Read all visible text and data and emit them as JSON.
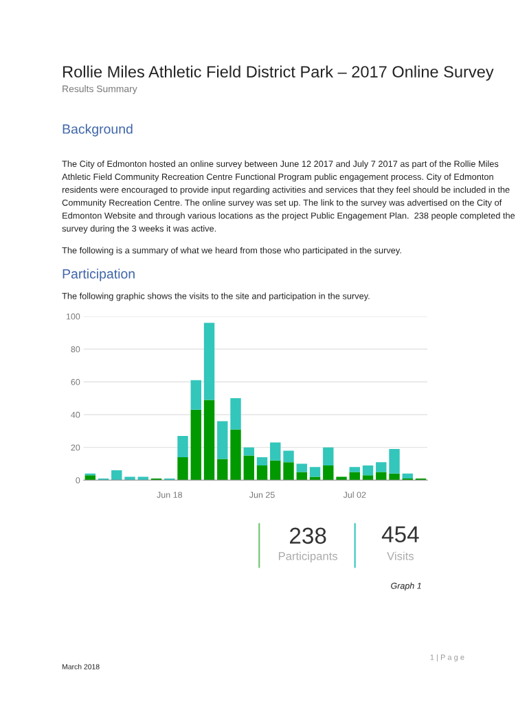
{
  "chart_data": {
    "type": "bar",
    "title": "Rollie Miles Athletic Field District Park – 2017 Online Survey",
    "subtitle": "Results Summary",
    "categories": [
      null,
      null,
      null,
      null,
      null,
      null,
      "Jun 18",
      null,
      null,
      null,
      null,
      null,
      null,
      "Jun 25",
      null,
      null,
      null,
      null,
      null,
      null,
      "Jul 02",
      null,
      null,
      null,
      null,
      null
    ],
    "stacked": true,
    "series": [
      {
        "color": "#009900",
        "values": [
          3,
          0,
          0,
          0,
          0,
          1,
          0,
          14,
          43,
          49,
          13,
          31,
          15,
          9,
          12,
          11,
          5,
          2,
          9,
          2,
          5,
          3,
          5,
          4,
          1,
          1
        ]
      },
      {
        "color": "#33c6bb",
        "values": [
          1,
          1,
          6,
          2,
          2,
          0,
          1,
          13,
          18,
          47,
          23,
          19,
          5,
          5,
          11,
          7,
          5,
          6,
          11,
          0,
          3,
          6,
          6,
          15,
          3,
          0
        ]
      }
    ],
    "ylim": [
      0,
      100
    ],
    "yticks": [
      0,
      20,
      40,
      60,
      80,
      100
    ],
    "grid": "y",
    "annotations": [
      "Background",
      "The City of Edmonton hosted an online survey between June 12 2017 and July 7 2017 as part of the Rollie Miles Athletic Field Community Recreation Centre Functional Program public engagement process. City of Edmonton residents were encouraged to provide input regarding activities and services that they feel should be included in the Community Recreation Centre. The online survey was set up. The link to the survey was advertised on the City of Edmonton Website and through various locations as the project Public Engagement Plan.  238 people completed the survey during the 3 weeks it was active.",
      "The following is a summary of what we heard from those who participated in the survey.",
      "Participation",
      "The following graphic shows the visits to the site and participation in the survey.",
      "238",
      "Participants",
      "454",
      "Visits",
      "Graph 1",
      "March 2018",
      "1 | P a g e"
    ]
  }
}
